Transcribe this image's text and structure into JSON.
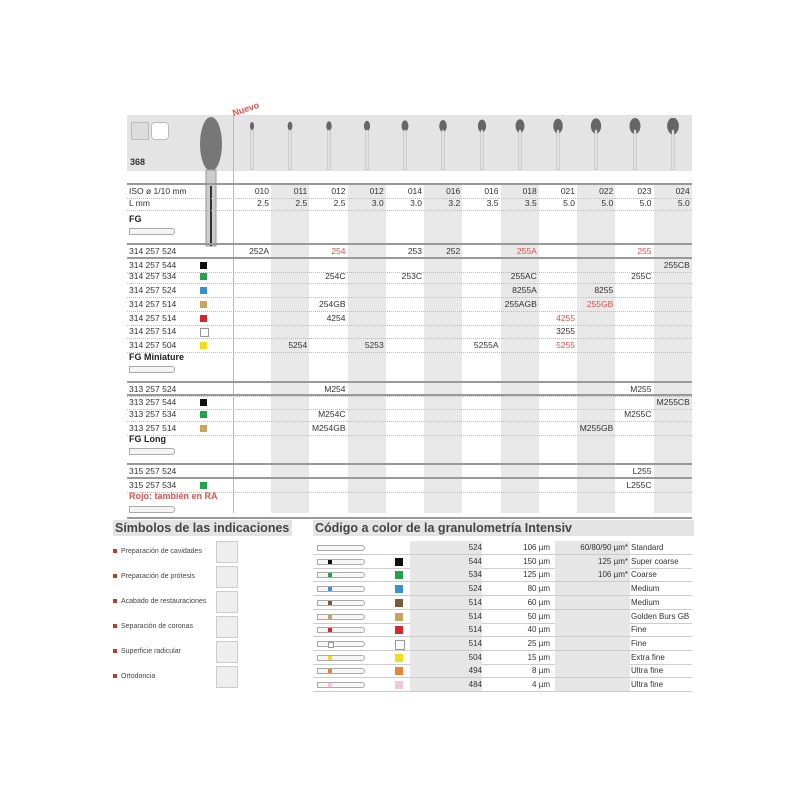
{
  "header": {
    "product_number": "368",
    "badge_new": "Nuevo"
  },
  "spec_rows": [
    {
      "label": "ISO ø 1/10 mm",
      "values": [
        "010",
        "011",
        "012",
        "012",
        "014",
        "016",
        "016",
        "018",
        "021",
        "022",
        "023",
        "024"
      ]
    },
    {
      "label": "L mm",
      "values": [
        "2.5",
        "2.5",
        "2.5",
        "3.0",
        "3.0",
        "3.2",
        "3.5",
        "3.5",
        "5.0",
        "5.0",
        "5.0",
        "5.0"
      ]
    }
  ],
  "sections": [
    {
      "title": "FG",
      "rows": [
        {
          "ref": "314 257 524",
          "swatch": null,
          "cells": [
            "252A",
            "",
            "254",
            "",
            "253",
            "252",
            "",
            "255A",
            "",
            "",
            "255",
            ""
          ],
          "red": [
            2,
            7,
            10
          ]
        },
        {
          "ref": "314 257 544",
          "swatch": "#111111",
          "cells": [
            "",
            "",
            "",
            "",
            "",
            "",
            "",
            "",
            "",
            "",
            "",
            "255CB"
          ],
          "red": []
        },
        {
          "ref": "314 257 534",
          "swatch": "#22a24a",
          "cells": [
            "",
            "",
            "254C",
            "",
            "253C",
            "",
            "",
            "255AC",
            "",
            "",
            "255C",
            ""
          ],
          "red": []
        },
        {
          "ref": "314 257 524",
          "swatch": "#3b8fd9",
          "cells": [
            "",
            "",
            "",
            "",
            "",
            "",
            "",
            "8255A",
            "",
            "8255",
            "",
            ""
          ],
          "red": []
        },
        {
          "ref": "314 257 514",
          "swatch": "#c9a45a",
          "cells": [
            "",
            "",
            "254GB",
            "",
            "",
            "",
            "",
            "255AGB",
            "",
            "255GB",
            "",
            ""
          ],
          "red": [
            9
          ]
        },
        {
          "ref": "314 257 514",
          "swatch": "#d8262e",
          "cells": [
            "",
            "",
            "4254",
            "",
            "",
            "",
            "",
            "",
            "4255",
            "",
            "",
            ""
          ],
          "red": [
            8
          ]
        },
        {
          "ref": "314 257 514",
          "swatch": "#ffffff",
          "cells": [
            "",
            "",
            "",
            "",
            "",
            "",
            "",
            "",
            "3255",
            "",
            "",
            ""
          ],
          "red": []
        },
        {
          "ref": "314 257 504",
          "swatch": "#f2dc1e",
          "cells": [
            "",
            "5254",
            "",
            "5253",
            "",
            "",
            "5255A",
            "",
            "5255",
            "",
            "",
            ""
          ],
          "red": [
            8
          ]
        }
      ]
    },
    {
      "title": "FG Miniature",
      "rows": [
        {
          "ref": "313 257 524",
          "swatch": null,
          "cells": [
            "",
            "",
            "M254",
            "",
            "",
            "",
            "",
            "",
            "",
            "",
            "M255",
            ""
          ],
          "red": []
        },
        {
          "ref": "313 257 544",
          "swatch": "#111111",
          "cells": [
            "",
            "",
            "",
            "",
            "",
            "",
            "",
            "",
            "",
            "",
            "",
            "M255CB"
          ],
          "red": []
        },
        {
          "ref": "313 257 534",
          "swatch": "#22a24a",
          "cells": [
            "",
            "",
            "M254C",
            "",
            "",
            "",
            "",
            "",
            "",
            "",
            "M255C",
            ""
          ],
          "red": []
        },
        {
          "ref": "313 257 514",
          "swatch": "#c9a45a",
          "cells": [
            "",
            "",
            "M254GB",
            "",
            "",
            "",
            "",
            "",
            "",
            "M255GB",
            "",
            ""
          ],
          "red": []
        }
      ]
    },
    {
      "title": "FG Long",
      "rows": [
        {
          "ref": "315 257 524",
          "swatch": null,
          "cells": [
            "",
            "",
            "",
            "",
            "",
            "",
            "",
            "",
            "",
            "",
            "L255",
            ""
          ],
          "red": []
        },
        {
          "ref": "315 257 534",
          "swatch": "#22a24a",
          "cells": [
            "",
            "",
            "",
            "",
            "",
            "",
            "",
            "",
            "",
            "",
            "L255C",
            ""
          ],
          "red": []
        }
      ]
    }
  ],
  "note_red": "Rojo: también en RA",
  "indications": {
    "title": "Símbolos de las indicaciones",
    "items": [
      "Preparación de cavidades",
      "Preparación de prótesis",
      "Acabado de restauraciones",
      "Separación de coronas",
      "Superficie radicular",
      "Ortodoncia"
    ]
  },
  "grit": {
    "title": "Código a color de la granulometría Intensiv",
    "rows": [
      {
        "swatch": null,
        "code": "524",
        "size": "106 µm",
        "note": "60/80/90 µm*",
        "desc": "Standard"
      },
      {
        "swatch": "#111111",
        "code": "544",
        "size": "150 µm",
        "note": "125 µm*",
        "desc": "Super coarse"
      },
      {
        "swatch": "#22a24a",
        "code": "534",
        "size": "125 µm",
        "note": "106 µm*",
        "desc": "Coarse"
      },
      {
        "swatch": "#3b8fd9",
        "code": "524",
        "size": "80 µm",
        "note": "",
        "desc": "Medium"
      },
      {
        "swatch": "#7a5a3a",
        "code": "514",
        "size": "60 µm",
        "note": "",
        "desc": "Medium"
      },
      {
        "swatch": "#c9a45a",
        "code": "514",
        "size": "50 µm",
        "note": "",
        "desc": "Golden Burs GB"
      },
      {
        "swatch": "#d8262e",
        "code": "514",
        "size": "40 µm",
        "note": "",
        "desc": "Fine"
      },
      {
        "swatch": "#ffffff",
        "code": "514",
        "size": "25 µm",
        "note": "",
        "desc": "Fine"
      },
      {
        "swatch": "#f2dc1e",
        "code": "504",
        "size": "15 µm",
        "note": "",
        "desc": "Extra fine"
      },
      {
        "swatch": "#e8843a",
        "code": "494",
        "size": "8 µm",
        "note": "",
        "desc": "Ultra fine"
      },
      {
        "swatch": "#f4c6dc",
        "code": "484",
        "size": "4 µm",
        "note": "",
        "desc": "Ultra fine"
      }
    ]
  },
  "colors": {
    "accent_red": "#d9534f",
    "panel_gray": "#e4e4e5"
  }
}
